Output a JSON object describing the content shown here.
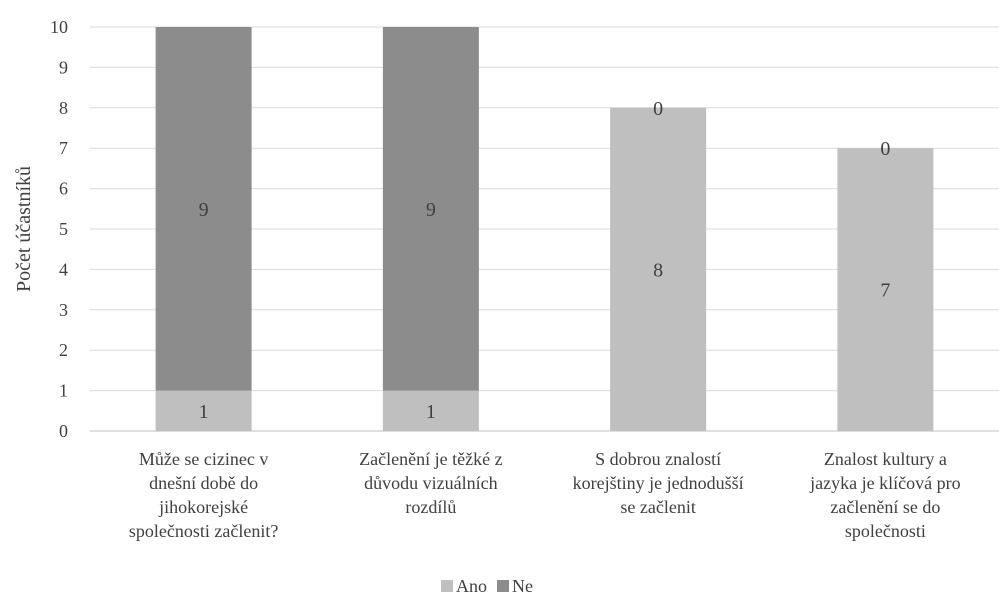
{
  "chart_data": {
    "type": "bar",
    "stacked": true,
    "categories": [
      [
        "Může se cizinec v",
        "dnešní době do",
        "jihokorejské",
        "společnosti začlenit?"
      ],
      [
        "Začlenění je těžké z",
        "důvodu vizuálních",
        "rozdílů"
      ],
      [
        "S dobrou znalostí",
        "korejštiny je jednodušší",
        "se začlenit"
      ],
      [
        "Znalost kultury a",
        "jazyka je klíčová pro",
        "začlenění se do",
        "společnosti"
      ]
    ],
    "series": [
      {
        "name": "Ano",
        "values": [
          1,
          1,
          8,
          7
        ],
        "color": "#bfbfbf"
      },
      {
        "name": "Ne",
        "values": [
          9,
          9,
          0,
          0
        ],
        "color": "#8c8c8c"
      }
    ],
    "ylabel": "Počet účastníků",
    "ylim": [
      0,
      10
    ],
    "yticks": [
      0,
      1,
      2,
      3,
      4,
      5,
      6,
      7,
      8,
      9,
      10
    ],
    "grid": true,
    "legend": "bottom-center"
  }
}
